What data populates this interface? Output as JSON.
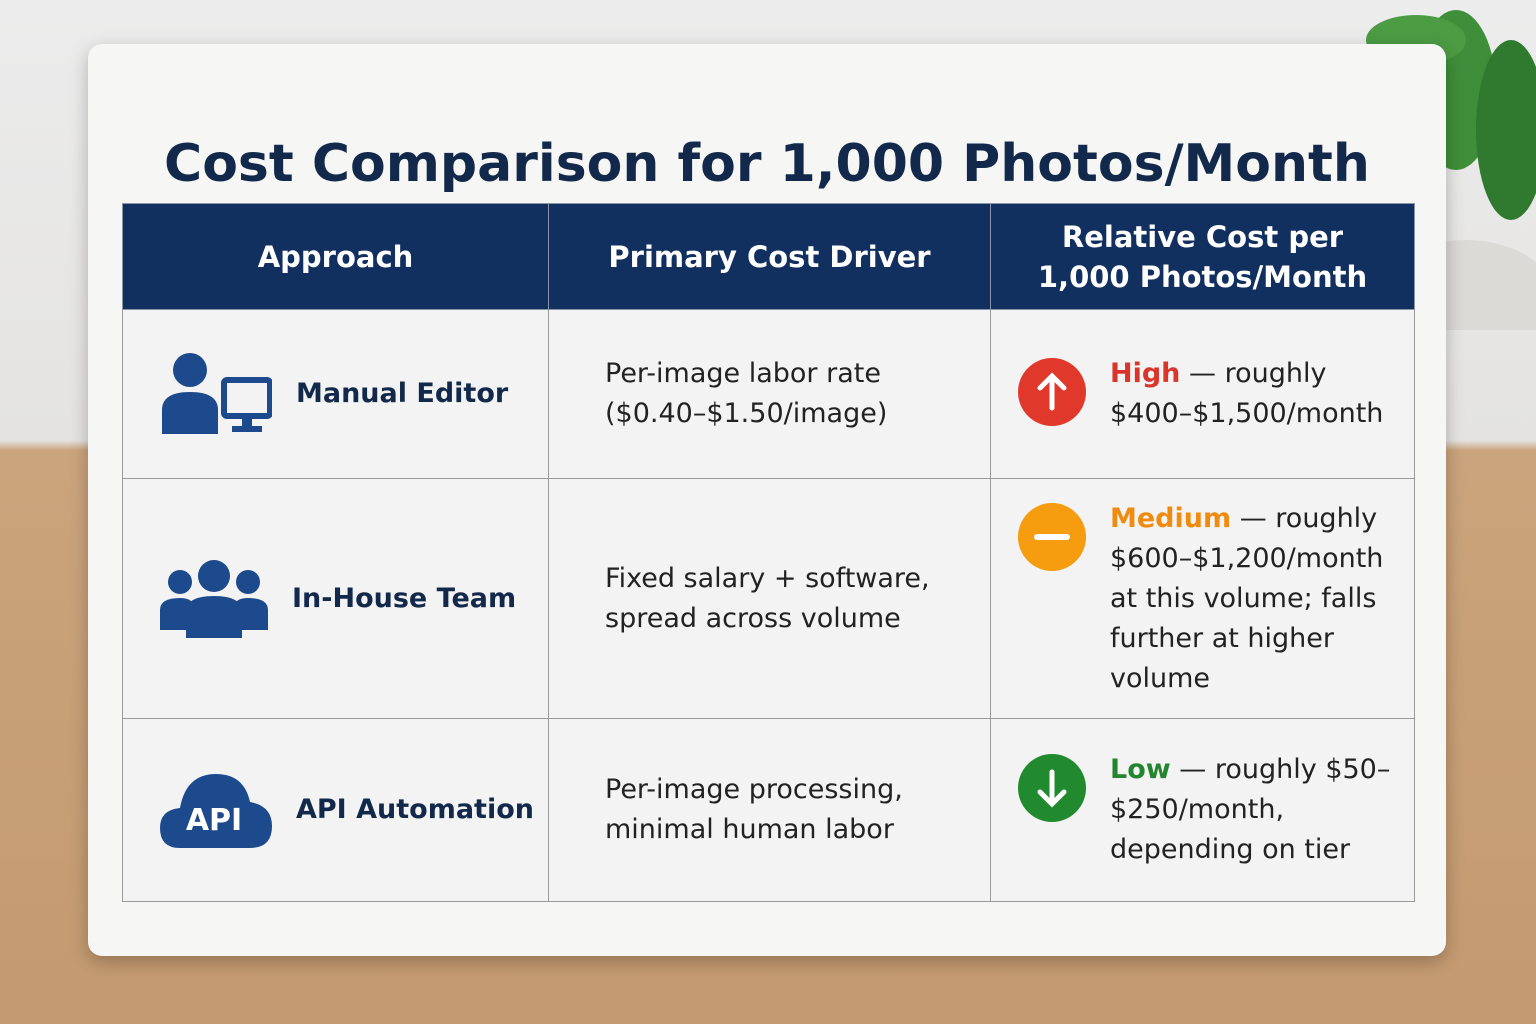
{
  "header": {
    "title": "Cost Comparison for 1,000 Photos/Month"
  },
  "table": {
    "columns": [
      "Approach",
      "Primary Cost Driver",
      "Relative Cost per 1,000 Photos/Month"
    ],
    "rows": [
      {
        "approach": "Manual Editor",
        "driver": "Per-image labor rate ($0.40–$1.50/image)",
        "level": "High",
        "cost": " — roughly $400–$1,500/month"
      },
      {
        "approach": "In-House Team",
        "driver": "Fixed salary + software, spread across volume",
        "level": "Medium",
        "cost": " — roughly $600–$1,200/month at this volume; falls further at higher volume"
      },
      {
        "approach": "API Automation",
        "icon_text": "API",
        "driver": "Per-image processing, minimal human labor",
        "level": "Low",
        "cost": " — roughly $50–$250/month, depending on tier"
      }
    ]
  }
}
